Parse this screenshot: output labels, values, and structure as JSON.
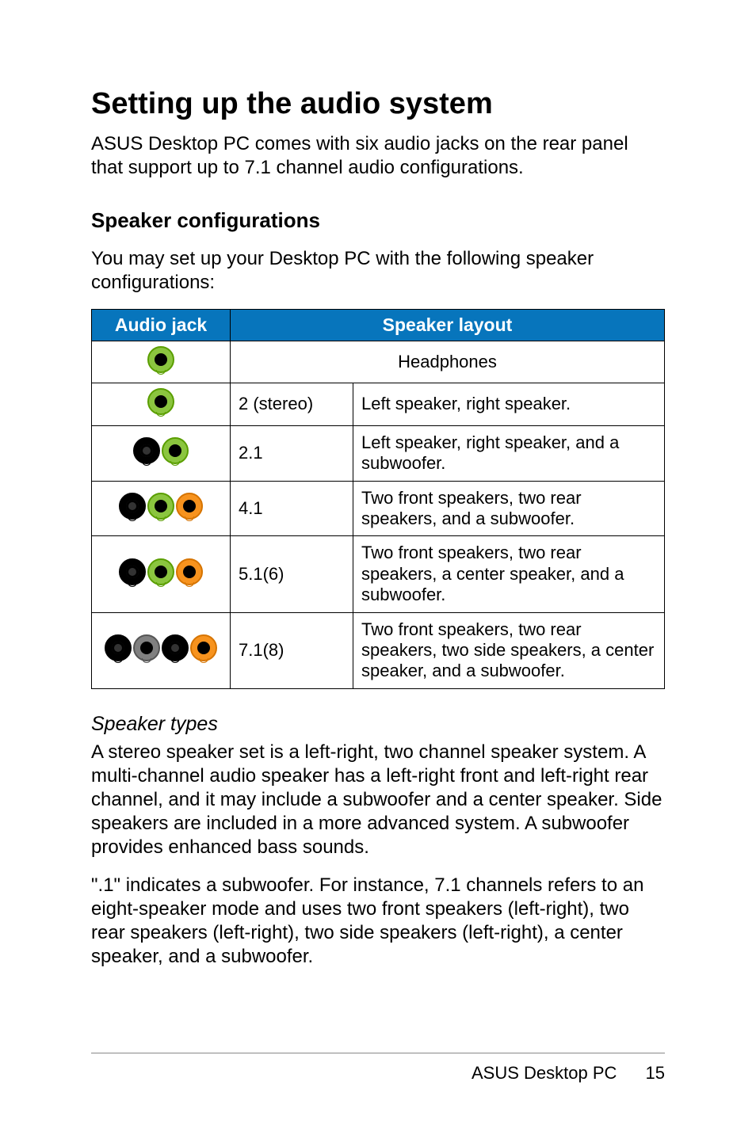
{
  "title": "Setting up the audio system",
  "intro": "ASUS Desktop PC comes with six audio jacks on the rear panel that support up to 7.1 channel audio configurations.",
  "section_heading": "Speaker configurations",
  "section_intro": "You may set up your Desktop PC with the following speaker configurations:",
  "table": {
    "header_jack": "Audio jack",
    "header_layout": "Speaker layout",
    "rows": [
      {
        "jacks": [
          "lime"
        ],
        "channel": "",
        "desc": "Headphones",
        "merged": true
      },
      {
        "jacks": [
          "lime"
        ],
        "channel": "2 (stereo)",
        "desc": "Left speaker, right speaker."
      },
      {
        "jacks": [
          "black",
          "lime"
        ],
        "channel": "2.1",
        "desc": "Left speaker, right speaker, and a subwoofer."
      },
      {
        "jacks": [
          "black",
          "lime",
          "orange"
        ],
        "channel": "4.1",
        "desc": "Two front speakers, two rear speakers, and a subwoofer."
      },
      {
        "jacks": [
          "black",
          "lime",
          "orange"
        ],
        "channel": "5.1(6)",
        "desc": "Two front speakers, two rear speakers, a center speaker, and a subwoofer."
      },
      {
        "jacks": [
          "black",
          "grey",
          "black",
          "orange"
        ],
        "channel": "7.1(8)",
        "desc": "Two front speakers, two rear speakers, two side speakers, a center speaker, and a subwoofer."
      }
    ]
  },
  "speaker_types_heading": "Speaker types",
  "speaker_types_p1": "A stereo speaker set is a left-right, two channel speaker system. A multi-channel audio speaker has a left-right front and left-right rear channel, and it may include a subwoofer and a center speaker. Side speakers are included in a more advanced system. A subwoofer provides enhanced bass sounds.",
  "speaker_types_p2": "\".1\" indicates a subwoofer. For instance, 7.1 channels refers to an eight-speaker mode and uses two front speakers (left-right), two rear speakers (left-right), two side speakers (left-right), a center speaker, and a subwoofer.",
  "footer_product": "ASUS Desktop PC",
  "footer_page": "15",
  "colors": {
    "header_bg": "#0775bc",
    "header_fg": "#ffffff",
    "border": "#000000",
    "lime": "#8bc53f",
    "orange": "#f7931e",
    "grey": "#808080",
    "black": "#000000"
  }
}
